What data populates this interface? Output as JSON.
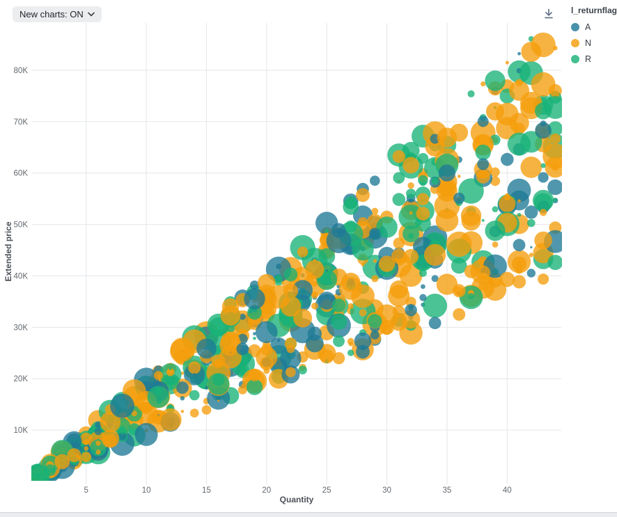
{
  "toolbar": {
    "new_charts_label": "New charts: ON",
    "chevron_icon": "chevron-down",
    "download_icon": "arrow-down-to-line"
  },
  "legend": {
    "title": "l_returnflag",
    "items": [
      {
        "label": "A",
        "color": "#1f7a96"
      },
      {
        "label": "N",
        "color": "#f59e0b"
      },
      {
        "label": "R",
        "color": "#18b277"
      }
    ]
  },
  "chart_data": {
    "type": "scatter",
    "mark": "bubble",
    "title": "",
    "xlabel": "Quantity",
    "ylabel": "Extended price",
    "xlim": [
      0.5,
      44.5
    ],
    "ylim": [
      0,
      89200
    ],
    "x_ticks": [
      5,
      10,
      15,
      20,
      25,
      30,
      35,
      40
    ],
    "y_ticks": [
      {
        "value": 10000,
        "label": "10K"
      },
      {
        "value": 20000,
        "label": "20K"
      },
      {
        "value": 30000,
        "label": "30K"
      },
      {
        "value": 40000,
        "label": "40K"
      },
      {
        "value": 50000,
        "label": "50K"
      },
      {
        "value": 60000,
        "label": "60K"
      },
      {
        "value": 70000,
        "label": "70K"
      },
      {
        "value": 80000,
        "label": "80K"
      }
    ],
    "grid": true,
    "grid_color": "#e4e6e9",
    "legend_position": "top-right",
    "marker_opacity": 0.78,
    "series": [
      {
        "name": "A",
        "color": "#1f7a96",
        "count": 175,
        "seed": 11
      },
      {
        "name": "N",
        "color": "#f59e0b",
        "count": 320,
        "seed": 22
      },
      {
        "name": "R",
        "color": "#18b277",
        "count": 210,
        "seed": 33
      }
    ],
    "point_model": {
      "quantity_integer_range": [
        1,
        44
      ],
      "unit_price_range": [
        901,
        2050
      ],
      "y_rule": "extended_price = quantity * unit_price",
      "radius_px_range": [
        1.5,
        18.5
      ]
    },
    "draw_shuffle_seed": 7
  }
}
